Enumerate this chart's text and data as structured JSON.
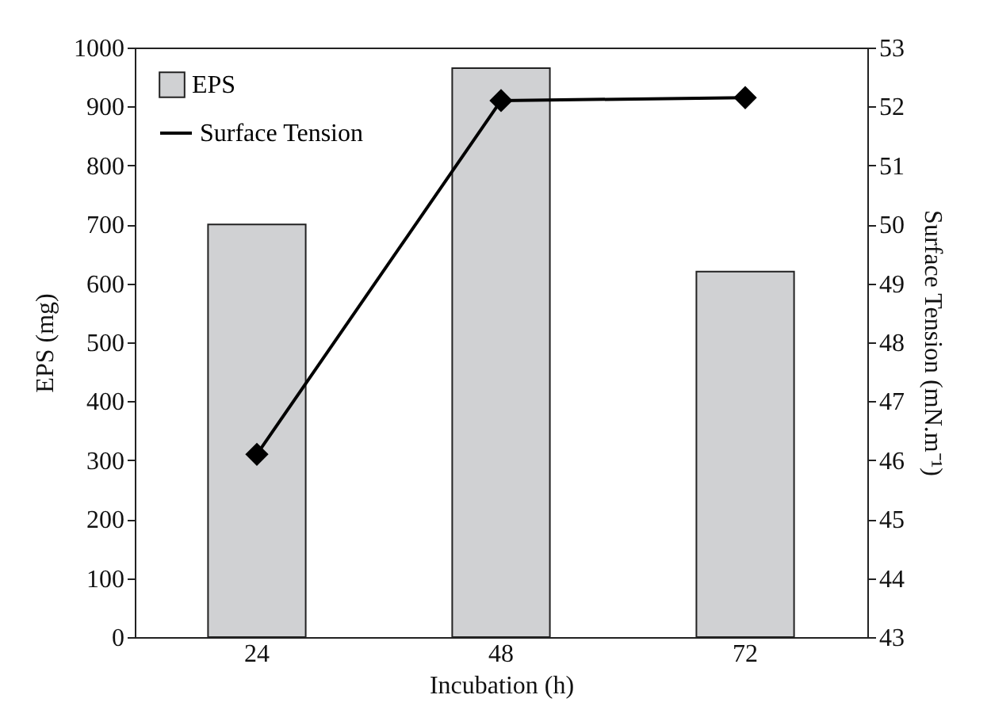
{
  "chart_data": {
    "type": "bar",
    "xlabel": "Incubation (h)",
    "ylabel": "EPS (mg)",
    "y2label": "Surface Tension (mN.m⁻¹)",
    "categories": [
      "24",
      "48",
      "72"
    ],
    "series": [
      {
        "name": "EPS",
        "color": "#d0d1d3",
        "values": [
          700,
          965,
          620
        ]
      },
      {
        "name": "Surface Tension",
        "type": "line",
        "axis": "y2",
        "color": "#000000",
        "values": [
          46.1,
          52.1,
          52.15
        ]
      }
    ],
    "ylim": [
      0,
      1000
    ],
    "yticks": [
      0,
      100,
      200,
      300,
      400,
      500,
      600,
      700,
      800,
      900,
      1000
    ],
    "y2lim": [
      43,
      53
    ],
    "y2ticks": [
      43,
      44,
      45,
      46,
      47,
      48,
      49,
      50,
      51,
      52,
      53
    ],
    "grid": false,
    "legend": "top left",
    "marker": "diamond",
    "line_style": "solid"
  }
}
